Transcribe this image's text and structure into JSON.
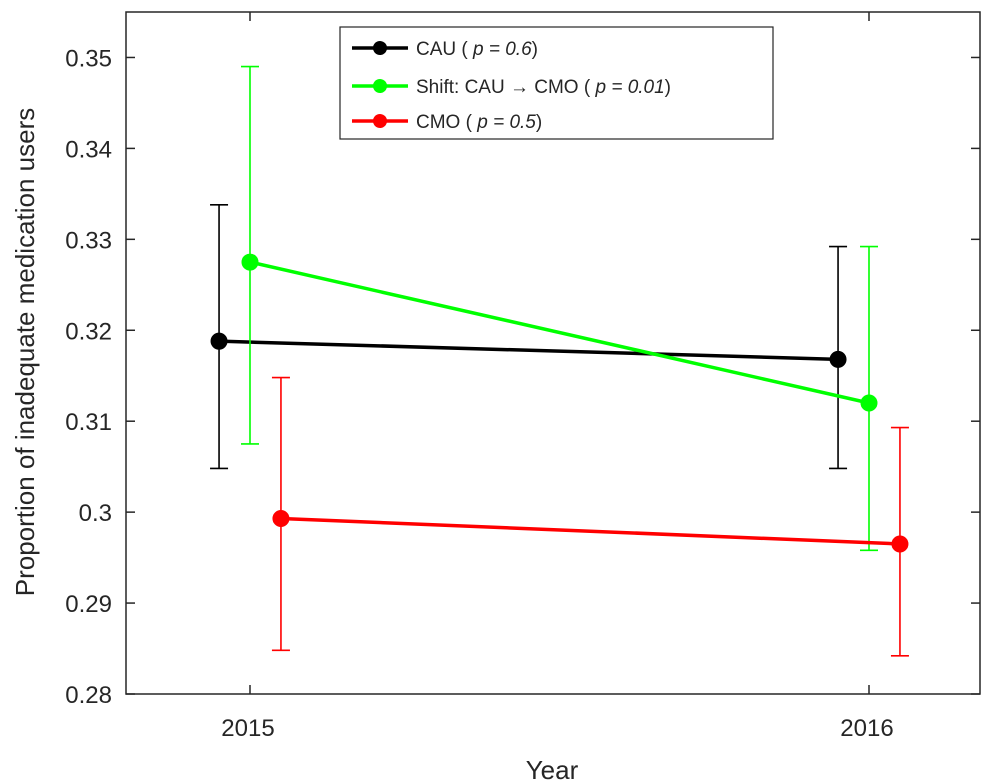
{
  "chart_data": {
    "type": "line",
    "title": "",
    "xlabel": "Year",
    "ylabel": "Proportion of inadequate medication users",
    "categories": [
      "2015",
      "2016"
    ],
    "ylim": [
      0.28,
      0.355
    ],
    "yticks": [
      0.28,
      0.29,
      0.3,
      0.31,
      0.32,
      0.33,
      0.34,
      0.35
    ],
    "ytick_labels": [
      "0.28",
      "0.29",
      "0.3",
      "0.31",
      "0.32",
      "0.33",
      "0.34",
      "0.35"
    ],
    "grid": false,
    "legend_position": "top",
    "series": [
      {
        "label": "CAU",
        "p_label": "p = 0.6",
        "color": "#000000",
        "x_offset": -0.05,
        "values": [
          0.3188,
          0.3168
        ],
        "lower": [
          0.3048,
          0.3048
        ],
        "upper": [
          0.3338,
          0.3292
        ]
      },
      {
        "label": "Shift: CAU → CMO",
        "p_label": "p = 0.01",
        "color": "#00ff00",
        "x_offset": 0.0,
        "values": [
          0.3275,
          0.312
        ],
        "lower": [
          0.3075,
          0.2958
        ],
        "upper": [
          0.349,
          0.3292
        ]
      },
      {
        "label": "CMO",
        "p_label": "p = 0.5",
        "color": "#ff0000",
        "x_offset": 0.05,
        "values": [
          0.2993,
          0.2965
        ],
        "lower": [
          0.2848,
          0.2842
        ],
        "upper": [
          0.3148,
          0.3093
        ]
      }
    ]
  }
}
